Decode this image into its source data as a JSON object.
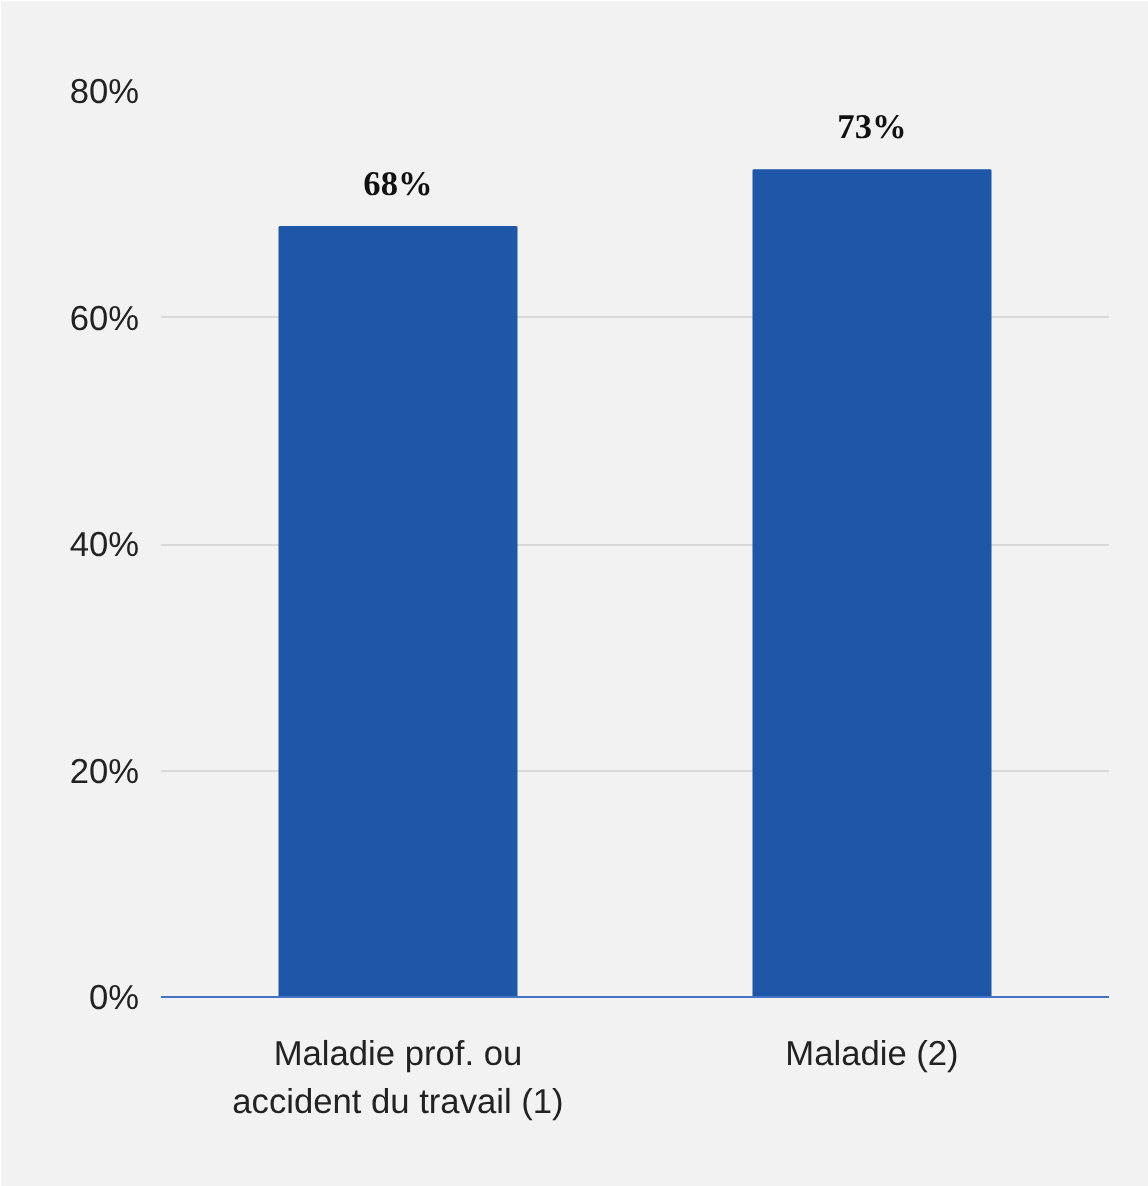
{
  "chart_data": {
    "type": "bar",
    "categories": [
      "Maladie prof. ou accident du travail (1)",
      "Maladie (2)"
    ],
    "values": [
      68,
      73
    ],
    "value_labels": [
      "68%",
      "73%"
    ],
    "color": "#1f57a8",
    "ylim": [
      0,
      80
    ],
    "yticks": [
      {
        "value": 0,
        "label": "0%"
      },
      {
        "value": 20,
        "label": "20%"
      },
      {
        "value": 40,
        "label": "40%"
      },
      {
        "value": 60,
        "label": "60%"
      },
      {
        "value": 80,
        "label": "80%"
      }
    ],
    "grid": "y"
  }
}
